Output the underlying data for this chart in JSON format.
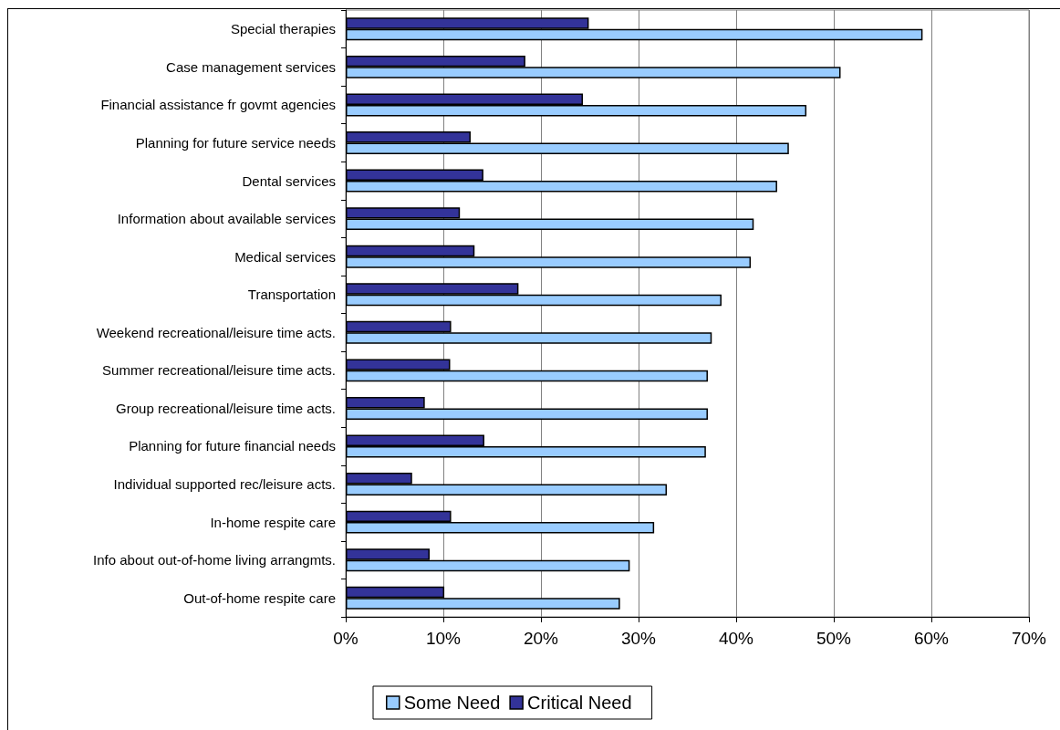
{
  "chart_data": {
    "type": "bar",
    "orientation": "horizontal",
    "categories": [
      "Special therapies",
      "Case management services",
      "Financial assistance fr govmt agencies",
      "Planning for future service needs",
      "Dental services",
      "Information about available services",
      "Medical services",
      "Transportation",
      "Weekend recreational/leisure time acts.",
      "Summer recreational/leisure time acts.",
      "Group recreational/leisure time acts.",
      "Planning for future financial needs",
      "Individual supported rec/leisure acts.",
      "In-home respite care",
      "Info about out-of-home living arrangmts.",
      "Out-of-home respite care"
    ],
    "series": [
      {
        "name": "Some Need",
        "color": "#99ccff",
        "values": [
          59.1,
          50.7,
          47.2,
          45.4,
          44.2,
          41.8,
          41.5,
          38.5,
          37.5,
          37.1,
          37.1,
          36.9,
          32.9,
          31.6,
          29.1,
          28.1
        ]
      },
      {
        "name": "Critical Need",
        "color": "#333399",
        "values": [
          24.9,
          18.4,
          24.3,
          12.8,
          14.1,
          11.7,
          13.2,
          17.7,
          10.8,
          10.7,
          8.1,
          14.2,
          6.8,
          10.8,
          8.6,
          10.1
        ]
      }
    ],
    "xlim": [
      0,
      70
    ],
    "xticks": [
      {
        "value": 0,
        "label": "0%"
      },
      {
        "value": 10,
        "label": "10%"
      },
      {
        "value": 20,
        "label": "20%"
      },
      {
        "value": 30,
        "label": "30%"
      },
      {
        "value": 40,
        "label": "40%"
      },
      {
        "value": 50,
        "label": "50%"
      },
      {
        "value": 60,
        "label": "60%"
      },
      {
        "value": 70,
        "label": "70%"
      }
    ],
    "grid": "x",
    "legend": "bottom"
  }
}
